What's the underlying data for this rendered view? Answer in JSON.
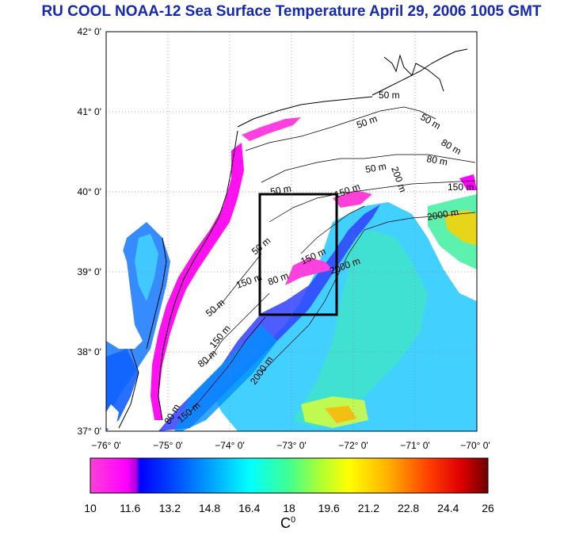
{
  "title": "RU COOL  NOAA-12 Sea Surface Temperature April 29, 2006 1005 GMT",
  "lat_labels": [
    "42° 0'",
    "41° 0'",
    "40° 0'",
    "39° 0'",
    "38° 0'",
    "37° 0'"
  ],
  "lon_labels": [
    "−76° 0'",
    "−75° 0'",
    "−74° 0'",
    "−73° 0'",
    "−72° 0'",
    "−71° 0'",
    "−70° 0'"
  ],
  "colorbar": {
    "min": 10,
    "max": 26,
    "tick_labels": [
      "10",
      "11.6",
      "13.2",
      "14.8",
      "16.4",
      "18",
      "19.6",
      "21.2",
      "22.8",
      "24.4",
      "26"
    ],
    "unit_base": "C",
    "unit_sup": "0",
    "stops": [
      "#ff40d8",
      "#ff00ff",
      "#b000e0",
      "#0000ff",
      "#0060ff",
      "#00c8ff",
      "#00ffe0",
      "#60ff80",
      "#d0ff20",
      "#ffff00",
      "#ffc000",
      "#ff8000",
      "#ff3000",
      "#e00000",
      "#700000"
    ]
  },
  "contour_labels": [
    {
      "text": "50 m",
      "id": "c50-a"
    },
    {
      "text": "50 m",
      "id": "c50-b"
    },
    {
      "text": "50 m",
      "id": "c50-c"
    },
    {
      "text": "80 m",
      "id": "c80-a"
    },
    {
      "text": "80 m",
      "id": "c80-b"
    },
    {
      "text": "150 m",
      "id": "c150-a"
    },
    {
      "text": "50 m",
      "id": "c50-d"
    },
    {
      "text": "200 m",
      "id": "c200-a"
    },
    {
      "text": "150 m",
      "id": "c150-b"
    },
    {
      "text": "2000 m",
      "id": "c2000-a"
    },
    {
      "text": "50 m",
      "id": "c50-e"
    },
    {
      "text": "150 m",
      "id": "c150-c"
    },
    {
      "text": "2000 m",
      "id": "c2000-b"
    },
    {
      "text": "50 m",
      "id": "c50-f"
    },
    {
      "text": "150 m",
      "id": "c150-d"
    },
    {
      "text": "80 m",
      "id": "c80-c"
    },
    {
      "text": "50 m",
      "id": "c50-g"
    },
    {
      "text": "150 m",
      "id": "c150-e"
    },
    {
      "text": "80 m",
      "id": "c80-d"
    },
    {
      "text": "2000 m",
      "id": "c2000-c"
    },
    {
      "text": "80 m",
      "id": "c80-e"
    },
    {
      "text": "150 m",
      "id": "c150-f"
    }
  ],
  "colors": {
    "title": "#1428b4",
    "coast": "#000000",
    "box": "#000000"
  }
}
